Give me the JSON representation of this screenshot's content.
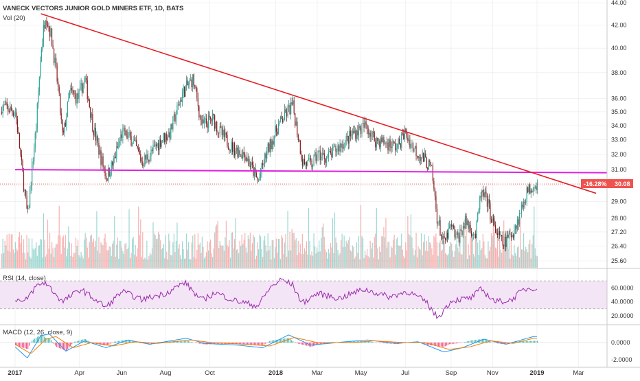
{
  "header": {
    "symbol_title": "VANECK VECTORS JUNIOR GOLD MINERS ETF, 1D, BATS",
    "volume_label": "Vol (20)"
  },
  "price_badge": {
    "change": "-16.28%",
    "price": "30.08"
  },
  "panes": {
    "rsi_label": "RSI (14, close)",
    "macd_label": "MACD (12, 26, close, 9)"
  },
  "colors": {
    "up": "#26a69a",
    "down": "#ef5350",
    "candle_down_fill": "#8b1a1a",
    "trendline": "#e31e24",
    "support": "#e020e0",
    "rsi_line": "#9c27b0",
    "rsi_band": "#f3e5f5",
    "macd_line": "#2196f3",
    "signal_line": "#f57c00",
    "badge": "#ef5350",
    "grid": "#e9e9e9",
    "axis_text": "#333333"
  },
  "chart_data": [
    {
      "type": "candlestick",
      "title": "VANECK VECTORS JUNIOR GOLD MINERS ETF, 1D, BATS",
      "x_ticks": [
        "2017",
        "Apr",
        "Jun",
        "Aug",
        "Oct",
        "2018",
        "Mar",
        "May",
        "Jul",
        "Sep",
        "Nov",
        "2019",
        "Mar"
      ],
      "y_ticks": [
        "44.00",
        "42.00",
        "40.00",
        "38.00",
        "36.00",
        "35.00",
        "34.00",
        "33.00",
        "32.00",
        "31.00",
        "30.00",
        "29.00",
        "28.00",
        "27.20",
        "26.40",
        "25.60"
      ],
      "y_scale": "log",
      "current_price": 30.08,
      "current_change": "-16.28%",
      "price_path": [
        [
          "2017-01-03",
          35.0
        ],
        [
          "2017-01-12",
          31.0
        ],
        [
          "2017-01-20",
          28.0
        ],
        [
          "2017-02-01",
          34.0
        ],
        [
          "2017-02-08",
          40.0
        ],
        [
          "2017-02-14",
          43.0
        ],
        [
          "2017-02-22",
          41.0
        ],
        [
          "2017-03-03",
          37.0
        ],
        [
          "2017-03-10",
          33.0
        ],
        [
          "2017-03-20",
          36.5
        ],
        [
          "2017-03-31",
          36.0
        ],
        [
          "2017-04-10",
          37.5
        ],
        [
          "2017-04-21",
          34.0
        ],
        [
          "2017-05-01",
          32.0
        ],
        [
          "2017-05-10",
          30.5
        ],
        [
          "2017-05-20",
          31.5
        ],
        [
          "2017-06-01",
          33.5
        ],
        [
          "2017-06-15",
          33.0
        ],
        [
          "2017-06-29",
          31.5
        ],
        [
          "2017-07-10",
          32.0
        ],
        [
          "2017-07-25",
          33.0
        ],
        [
          "2017-08-07",
          33.5
        ],
        [
          "2017-08-25",
          36.5
        ],
        [
          "2017-09-08",
          37.5
        ],
        [
          "2017-09-20",
          34.0
        ],
        [
          "2017-10-06",
          34.5
        ],
        [
          "2017-10-16",
          33.5
        ],
        [
          "2017-11-01",
          32.5
        ],
        [
          "2017-11-20",
          32.0
        ],
        [
          "2017-12-08",
          30.2
        ],
        [
          "2017-12-19",
          32.0
        ],
        [
          "2018-01-05",
          34.0
        ],
        [
          "2018-01-18",
          35.0
        ],
        [
          "2018-01-25",
          35.5
        ],
        [
          "2018-02-08",
          31.5
        ],
        [
          "2018-02-20",
          31.3
        ],
        [
          "2018-03-01",
          32.0
        ],
        [
          "2018-03-15",
          31.8
        ],
        [
          "2018-03-30",
          32.5
        ],
        [
          "2018-04-11",
          33.0
        ],
        [
          "2018-04-20",
          33.5
        ],
        [
          "2018-05-01",
          33.8
        ],
        [
          "2018-05-08",
          34.0
        ],
        [
          "2018-05-20",
          33.0
        ],
        [
          "2018-06-05",
          32.8
        ],
        [
          "2018-06-20",
          32.5
        ],
        [
          "2018-07-01",
          33.5
        ],
        [
          "2018-07-12",
          32.5
        ],
        [
          "2018-07-31",
          31.5
        ],
        [
          "2018-08-07",
          31.0
        ],
        [
          "2018-08-15",
          28.0
        ],
        [
          "2018-08-24",
          26.5
        ],
        [
          "2018-09-03",
          27.5
        ],
        [
          "2018-09-12",
          26.8
        ],
        [
          "2018-09-24",
          27.8
        ],
        [
          "2018-10-08",
          27.0
        ],
        [
          "2018-10-15",
          29.5
        ],
        [
          "2018-10-24",
          29.0
        ],
        [
          "2018-11-02",
          27.5
        ],
        [
          "2018-11-15",
          26.5
        ],
        [
          "2018-11-26",
          27.0
        ],
        [
          "2018-12-07",
          28.0
        ],
        [
          "2018-12-17",
          29.5
        ],
        [
          "2018-12-28",
          30.08
        ]
      ],
      "trendline": [
        [
          "2017-02-08",
          43.0
        ],
        [
          "2019-03-20",
          29.5
        ]
      ],
      "support_line": [
        [
          "2017-01-03",
          31.0
        ],
        [
          "2019-03-20",
          30.8
        ]
      ]
    },
    {
      "type": "bar",
      "name": "Vol (20)",
      "note_levels": "relative volume histogram, up days green, down days red"
    },
    {
      "type": "line",
      "name": "RSI (14, close)",
      "y_ticks": [
        "60.0000",
        "40.0000",
        "20.0000"
      ],
      "band": [
        30,
        70
      ],
      "points": [
        [
          "2017-01-03",
          45
        ],
        [
          "2017-01-15",
          38
        ],
        [
          "2017-02-01",
          62
        ],
        [
          "2017-02-14",
          68
        ],
        [
          "2017-03-10",
          40
        ],
        [
          "2017-04-05",
          58
        ],
        [
          "2017-05-10",
          32
        ],
        [
          "2017-06-01",
          55
        ],
        [
          "2017-06-29",
          43
        ],
        [
          "2017-08-01",
          52
        ],
        [
          "2017-08-28",
          68
        ],
        [
          "2017-09-20",
          42
        ],
        [
          "2017-10-10",
          53
        ],
        [
          "2017-11-05",
          42
        ],
        [
          "2017-12-08",
          34
        ],
        [
          "2017-12-25",
          60
        ],
        [
          "2018-01-10",
          72
        ],
        [
          "2018-01-25",
          65
        ],
        [
          "2018-02-08",
          38
        ],
        [
          "2018-03-01",
          52
        ],
        [
          "2018-04-01",
          45
        ],
        [
          "2018-05-05",
          58
        ],
        [
          "2018-06-10",
          47
        ],
        [
          "2018-07-05",
          55
        ],
        [
          "2018-07-31",
          40
        ],
        [
          "2018-08-16",
          17
        ],
        [
          "2018-09-05",
          42
        ],
        [
          "2018-10-01",
          45
        ],
        [
          "2018-10-16",
          58
        ],
        [
          "2018-11-05",
          40
        ],
        [
          "2018-11-26",
          42
        ],
        [
          "2018-12-15",
          58
        ],
        [
          "2018-12-28",
          60
        ]
      ]
    },
    {
      "type": "line",
      "name": "MACD (12, 26, close, 9)",
      "y_ticks": [
        "0.0000",
        "-2.0000"
      ],
      "series": [
        {
          "name": "MACD",
          "points": [
            [
              "2017-01-03",
              -0.5
            ],
            [
              "2017-01-20",
              -1.8
            ],
            [
              "2017-02-08",
              0.8
            ],
            [
              "2017-02-20",
              1.0
            ],
            [
              "2017-03-15",
              -1.0
            ],
            [
              "2017-04-10",
              0.2
            ],
            [
              "2017-05-10",
              -0.6
            ],
            [
              "2017-06-10",
              0.3
            ],
            [
              "2017-07-10",
              -0.2
            ],
            [
              "2017-08-30",
              0.5
            ],
            [
              "2017-09-25",
              -0.1
            ],
            [
              "2017-11-10",
              -0.3
            ],
            [
              "2017-12-15",
              -0.6
            ],
            [
              "2018-01-20",
              0.9
            ],
            [
              "2018-02-20",
              -0.3
            ],
            [
              "2018-04-10",
              0.1
            ],
            [
              "2018-05-10",
              0.3
            ],
            [
              "2018-06-20",
              -0.1
            ],
            [
              "2018-07-20",
              0.1
            ],
            [
              "2018-08-25",
              -1.1
            ],
            [
              "2018-09-20",
              -0.6
            ],
            [
              "2018-10-20",
              0.4
            ],
            [
              "2018-11-20",
              -0.2
            ],
            [
              "2018-12-28",
              0.7
            ]
          ]
        },
        {
          "name": "Signal",
          "points": [
            [
              "2017-01-03",
              -0.2
            ],
            [
              "2017-01-25",
              -1.3
            ],
            [
              "2017-02-15",
              0.4
            ],
            [
              "2017-03-01",
              0.7
            ],
            [
              "2017-03-25",
              -0.6
            ],
            [
              "2017-04-20",
              0.0
            ],
            [
              "2017-05-20",
              -0.4
            ],
            [
              "2017-06-20",
              0.1
            ],
            [
              "2017-07-20",
              -0.1
            ],
            [
              "2017-09-05",
              0.3
            ],
            [
              "2017-10-05",
              0.0
            ],
            [
              "2017-11-20",
              -0.2
            ],
            [
              "2017-12-25",
              -0.4
            ],
            [
              "2018-01-28",
              0.6
            ],
            [
              "2018-03-01",
              0.0
            ],
            [
              "2018-04-20",
              0.0
            ],
            [
              "2018-05-20",
              0.2
            ],
            [
              "2018-06-30",
              0.0
            ],
            [
              "2018-07-30",
              0.0
            ],
            [
              "2018-09-01",
              -0.8
            ],
            [
              "2018-09-30",
              -0.5
            ],
            [
              "2018-10-30",
              0.2
            ],
            [
              "2018-11-30",
              -0.1
            ],
            [
              "2018-12-28",
              0.5
            ]
          ]
        }
      ]
    }
  ]
}
